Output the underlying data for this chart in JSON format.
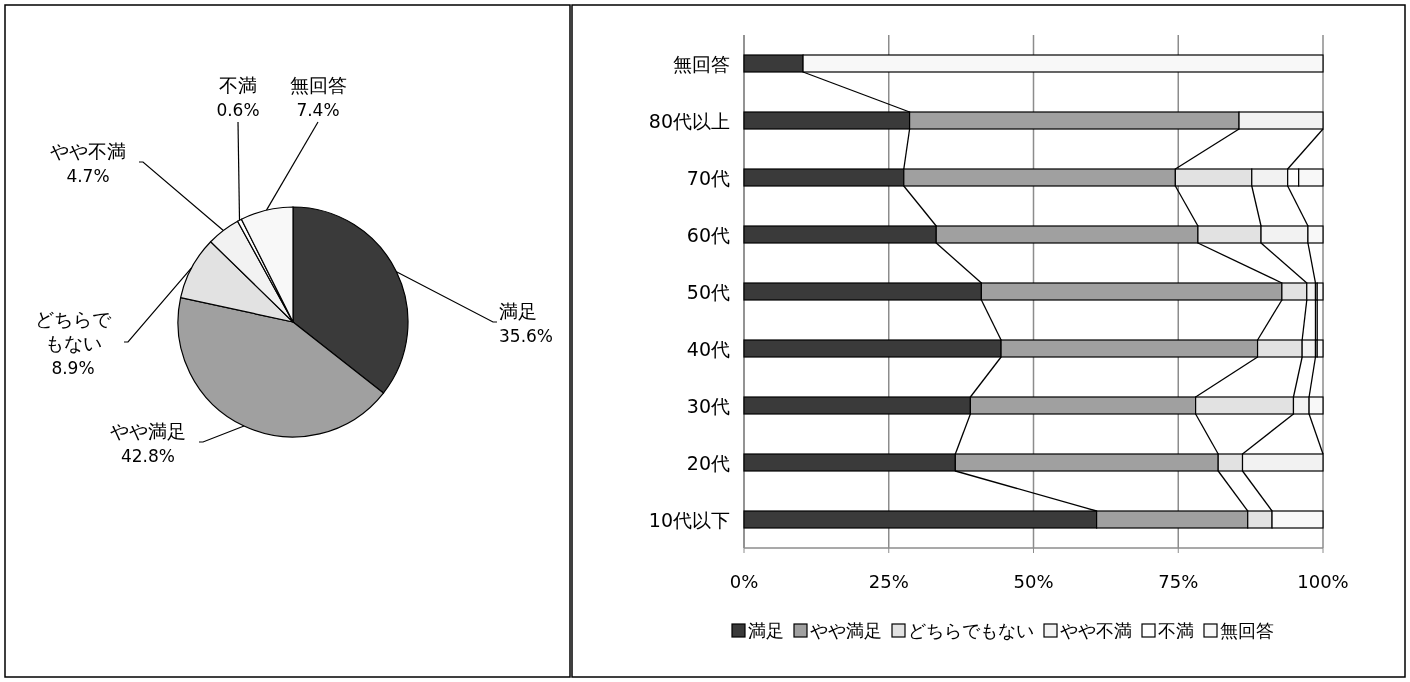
{
  "chart_data": [
    {
      "type": "pie",
      "categories": [
        "満足",
        "やや満足",
        "どちらでもない",
        "やや不満",
        "不満",
        "無回答"
      ],
      "values": [
        35.6,
        42.8,
        8.9,
        4.7,
        0.6,
        7.4
      ],
      "colors": [
        "#3a3a3a",
        "#a0a0a0",
        "#e2e2e2",
        "#f2f2f2",
        "#ffffff",
        "#f8f8f8"
      ],
      "value_labels": [
        "35.6%",
        "42.8%",
        "8.9%",
        "4.7%",
        "0.6%",
        "7.4%"
      ]
    },
    {
      "type": "bar",
      "orientation": "horizontal",
      "stacked": true,
      "categories": [
        "無回答",
        "80代以上",
        "70代",
        "60代",
        "50代",
        "40代",
        "30代",
        "20代",
        "10代以下"
      ],
      "series": [
        {
          "name": "満足",
          "color": "#3a3a3a",
          "values": [
            10.2,
            28.6,
            27.6,
            33.2,
            41.0,
            44.4,
            39.1,
            36.5,
            60.9
          ]
        },
        {
          "name": "やや満足",
          "color": "#a0a0a0",
          "values": [
            null,
            56.9,
            46.9,
            45.2,
            51.9,
            44.3,
            38.9,
            45.4,
            26.1
          ]
        },
        {
          "name": "どちらでもない",
          "color": "#e2e2e2",
          "values": [
            null,
            null,
            13.2,
            10.9,
            4.3,
            7.7,
            16.9,
            4.2,
            4.2
          ]
        },
        {
          "name": "やや不満",
          "color": "#f2f2f2",
          "values": [
            null,
            14.5,
            6.2,
            8.1,
            1.5,
            2.3,
            2.7,
            13.9,
            null
          ]
        },
        {
          "name": "不満",
          "color": "#ffffff",
          "values": [
            null,
            null,
            1.9,
            null,
            0.3,
            0.3,
            null,
            null,
            null
          ]
        },
        {
          "name": "無回答",
          "color": "#f8f8f8",
          "values": [
            89.8,
            null,
            4.2,
            2.6,
            1.0,
            1.0,
            2.4,
            null,
            8.8
          ]
        }
      ],
      "xlim": [
        0,
        100
      ],
      "xticks": [
        {
          "value": 0,
          "label": "0%"
        },
        {
          "value": 25,
          "label": "25%"
        },
        {
          "value": 50,
          "label": "50%"
        },
        {
          "value": 75,
          "label": "75%"
        },
        {
          "value": 100,
          "label": "100%"
        }
      ],
      "grid": "x",
      "legend": "bottom"
    }
  ]
}
